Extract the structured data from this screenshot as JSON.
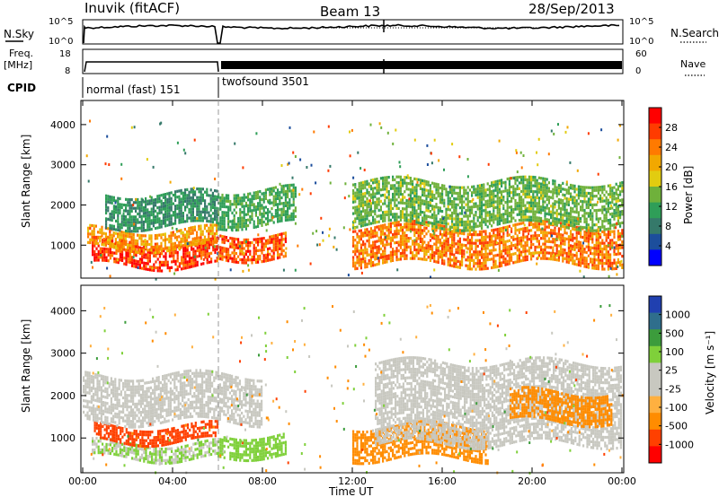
{
  "header": {
    "station": "Inuvik (fitACF)",
    "beam": "Beam 13",
    "date": "28/Sep/2013"
  },
  "top_panels": {
    "nsky_label": "N.Sky",
    "nsearch_label": "N.Search",
    "nsky_ticks_left": [
      "10^5",
      "10^0"
    ],
    "nsky_ticks_right": [
      "10^5",
      "10^0"
    ],
    "freq_label_line1": "Freq.",
    "freq_label_line2": "[MHz]",
    "freq_ticks": [
      "18",
      "8"
    ],
    "nave_ticks": [
      "60",
      "0"
    ],
    "nave_label": "Nave",
    "cpid_label": "CPID",
    "cpid_modes": [
      {
        "name": "normal (fast) 151",
        "start": "00:00",
        "end": "06:00"
      },
      {
        "name": "twofsound 3501",
        "start": "06:00",
        "end": "00:00"
      }
    ]
  },
  "axes": {
    "x_ticks": [
      "00:00",
      "04:00",
      "08:00",
      "12:00",
      "16:00",
      "20:00",
      "00:00"
    ],
    "x_label": "Time UT",
    "y_ticks": [
      "1000",
      "2000",
      "3000",
      "4000"
    ],
    "y_label": "Slant Range [km]"
  },
  "colorbars": {
    "power": {
      "label": "Power [dB]",
      "ticks": [
        "28",
        "24",
        "20",
        "16",
        "12",
        "8",
        "4"
      ],
      "colors": [
        "#ff0000",
        "#ff3b00",
        "#ff7a00",
        "#f2a800",
        "#e2cc10",
        "#6fb13b",
        "#2f9e58",
        "#35796a",
        "#1c4e9c",
        "#0000ff"
      ]
    },
    "velocity": {
      "label": "Velocity [m s⁻¹]",
      "ticks": [
        "1000",
        "500",
        "100",
        "25",
        "-25",
        "-100",
        "-500",
        "-1000"
      ],
      "colors": [
        "#2040b0",
        "#2f6e8c",
        "#3c9c3c",
        "#7fd03a",
        "#c8c8c0",
        "#c8c8c0",
        "#ffb040",
        "#ff8c00",
        "#ff4000",
        "#ff0000"
      ]
    }
  },
  "chart_data": [
    {
      "type": "heatmap",
      "title": "Power",
      "xlabel": "Time UT",
      "ylabel": "Slant Range [km]",
      "xlim": [
        "00:00",
        "24:00"
      ],
      "ylim": [
        180,
        4600
      ],
      "colorbar": {
        "label": "Power [dB]",
        "range": [
          0,
          32
        ]
      },
      "features": [
        {
          "t0": 0.4,
          "t1": 6.0,
          "r0": 480,
          "r1": 1100,
          "value_db": 28
        },
        {
          "t0": 0.2,
          "t1": 6.0,
          "r0": 900,
          "r1": 1400,
          "value_db": 22
        },
        {
          "t0": 1.0,
          "t1": 6.0,
          "r0": 1500,
          "r1": 2300,
          "value_db": 10
        },
        {
          "t0": 6.0,
          "t1": 9.0,
          "r0": 700,
          "r1": 1300,
          "value_db": 26
        },
        {
          "t0": 6.0,
          "t1": 9.5,
          "r0": 1500,
          "r1": 2400,
          "value_db": 12
        },
        {
          "t0": 12.0,
          "t1": 24.0,
          "r0": 500,
          "r1": 1500,
          "value_db": 24
        },
        {
          "t0": 12.0,
          "t1": 24.0,
          "r0": 1500,
          "r1": 2600,
          "value_db": 14
        }
      ]
    },
    {
      "type": "heatmap",
      "title": "Velocity",
      "xlabel": "Time UT",
      "ylabel": "Slant Range [km]",
      "xlim": [
        "00:00",
        "24:00"
      ],
      "ylim": [
        180,
        4600
      ],
      "colorbar": {
        "label": "Velocity [m s⁻¹]",
        "range": [
          -1000,
          1000
        ]
      },
      "features": [
        {
          "t0": 0.4,
          "t1": 6.0,
          "r0": 500,
          "r1": 900,
          "value": 100
        },
        {
          "t0": 0.5,
          "t1": 6.0,
          "r0": 900,
          "r1": 1300,
          "value": -300
        },
        {
          "t0": 0.0,
          "t1": 8.0,
          "r0": 1400,
          "r1": 2500,
          "value": 0
        },
        {
          "t0": 6.0,
          "t1": 9.0,
          "r0": 600,
          "r1": 1100,
          "value": 200
        },
        {
          "t0": 12.0,
          "t1": 18.0,
          "r0": 500,
          "r1": 1300,
          "value": -200
        },
        {
          "t0": 13.0,
          "t1": 24.0,
          "r0": 900,
          "r1": 2800,
          "value": 0
        },
        {
          "t0": 19.0,
          "t1": 23.5,
          "r0": 1400,
          "r1": 2100,
          "value": -150
        }
      ]
    }
  ]
}
